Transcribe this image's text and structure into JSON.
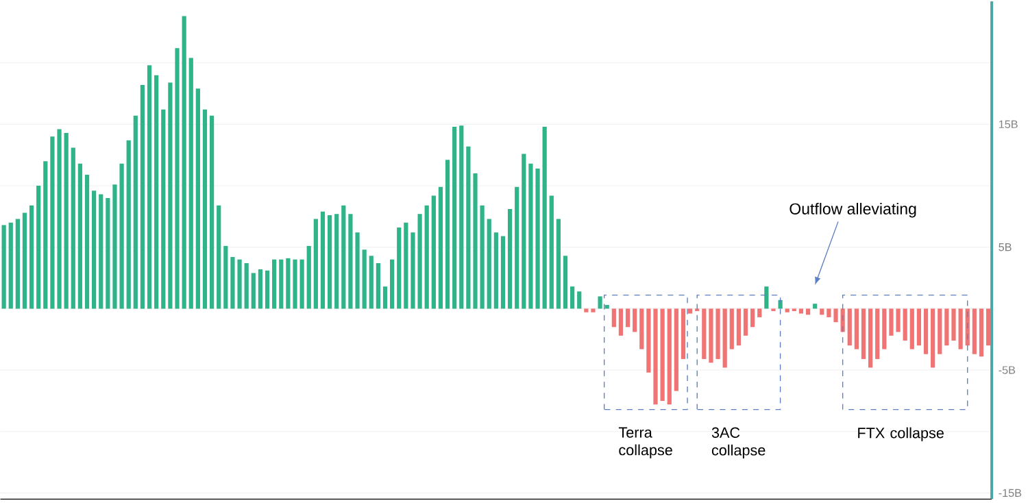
{
  "chart_data": {
    "type": "bar",
    "categories": [
      null,
      null,
      null,
      null,
      null,
      null,
      null,
      null,
      null,
      null,
      null,
      null,
      null,
      null,
      null,
      null,
      null,
      null,
      null,
      null,
      null,
      null,
      null,
      null,
      null,
      null,
      null,
      null,
      null,
      null,
      null,
      null,
      null,
      null,
      null,
      null,
      null,
      null,
      null,
      null,
      null,
      null,
      null,
      null,
      null,
      null,
      null,
      null,
      null,
      null,
      null,
      null,
      null,
      null,
      null,
      null,
      null,
      null,
      null,
      null,
      null,
      null,
      null,
      null,
      null,
      null,
      null,
      null,
      null,
      null,
      null,
      null,
      null,
      null,
      null,
      null,
      null,
      null,
      null,
      null,
      null,
      null,
      null,
      null,
      null,
      null,
      null,
      null,
      null,
      null,
      null,
      null,
      null,
      null,
      null,
      null,
      null,
      null,
      null,
      null,
      null,
      null,
      null,
      null,
      null,
      null,
      null,
      null,
      null,
      null,
      null,
      null,
      null,
      null,
      null,
      null,
      null,
      null,
      null,
      null,
      null,
      null,
      null,
      null,
      null,
      null,
      null,
      null,
      null,
      null,
      null,
      null,
      null,
      null,
      null,
      null,
      null,
      null,
      null,
      null,
      null,
      null,
      null
    ],
    "series": [
      {
        "color": "#2fb389",
        "values": [
          6.8,
          7.0,
          7.3,
          7.8,
          8.4,
          10.0,
          12.0,
          14.0,
          14.6,
          14.3,
          13.1,
          11.8,
          10.9,
          9.6,
          9.3,
          9.0,
          10.1,
          11.8,
          13.7,
          15.7,
          18.2,
          19.8,
          19.0,
          16.2,
          18.4,
          21.2,
          23.8,
          20.4,
          17.9,
          16.2,
          15.7,
          8.4,
          5.1,
          4.2,
          4.0,
          3.7,
          2.9,
          3.2,
          3.1,
          4.0,
          4.0,
          4.1,
          4.0,
          4.0,
          5.1,
          7.3,
          7.9,
          7.6,
          7.7,
          8.4,
          7.7,
          6.2,
          4.8,
          4.3,
          3.7,
          1.8,
          4.0,
          6.6,
          7.0,
          6.2,
          7.7,
          8.4,
          9.2,
          9.9,
          12.1,
          14.8,
          14.9,
          13.2,
          11.0,
          8.4,
          7.3,
          6.2,
          5.9,
          8.1,
          9.9,
          12.6,
          11.8,
          11.4,
          14.8,
          9.2,
          7.3,
          4.3,
          1.8,
          1.4,
          null,
          null,
          1.0,
          0.3,
          null,
          null,
          null,
          null,
          null,
          null,
          null,
          null,
          null,
          null,
          null,
          null,
          null,
          null,
          null,
          null,
          null,
          null,
          null,
          null,
          null,
          null,
          1.8,
          null,
          0.7,
          null,
          null,
          null,
          null,
          0.4,
          null,
          null,
          null,
          null,
          null,
          null,
          null,
          null,
          null,
          null,
          null,
          null,
          null,
          null,
          null,
          null,
          null,
          null,
          null,
          null,
          null,
          null,
          null,
          null,
          null
        ]
      },
      {
        "color": "#f07474",
        "values": [
          null,
          null,
          null,
          null,
          null,
          null,
          null,
          null,
          null,
          null,
          null,
          null,
          null,
          null,
          null,
          null,
          null,
          null,
          null,
          null,
          null,
          null,
          null,
          null,
          null,
          null,
          null,
          null,
          null,
          null,
          null,
          null,
          null,
          null,
          null,
          null,
          null,
          null,
          null,
          null,
          null,
          null,
          null,
          null,
          null,
          null,
          null,
          null,
          null,
          null,
          null,
          null,
          null,
          null,
          null,
          null,
          null,
          null,
          null,
          null,
          null,
          null,
          null,
          null,
          null,
          null,
          null,
          null,
          null,
          null,
          null,
          null,
          null,
          null,
          null,
          null,
          null,
          null,
          null,
          null,
          null,
          null,
          null,
          null,
          -0.3,
          -0.3,
          null,
          null,
          -1.5,
          -2.2,
          -1.5,
          -1.9,
          -3.3,
          -5.2,
          -7.8,
          -7.5,
          -7.8,
          -6.7,
          -4.1,
          -0.4,
          -0.2,
          -4.1,
          -4.4,
          -4.1,
          -4.8,
          -3.3,
          -3.0,
          -2.2,
          -1.5,
          -0.7,
          null,
          -0.2,
          null,
          -0.3,
          -0.2,
          -0.4,
          -0.5,
          null,
          -0.5,
          -0.7,
          -1.1,
          -1.9,
          -3.0,
          -3.3,
          -4.1,
          -4.8,
          -4.1,
          -3.3,
          -2.2,
          -1.9,
          -2.6,
          -3.3,
          -3.0,
          -3.7,
          -4.8,
          -3.7,
          -3.0,
          -2.6,
          -3.3,
          -3.0,
          -3.7,
          -3.9,
          -3.0
        ]
      }
    ],
    "ylim": [
      -15.5,
      25
    ],
    "yticks": [
      {
        "value": -15,
        "label": "-15B"
      },
      {
        "value": -10,
        "label": null
      },
      {
        "value": -5,
        "label": "-5B"
      },
      {
        "value": 0,
        "label": null
      },
      {
        "value": 5,
        "label": "5B"
      },
      {
        "value": 10,
        "label": null
      },
      {
        "value": 15,
        "label": "15B"
      },
      {
        "value": 20,
        "label": null
      }
    ],
    "grid": "y",
    "tick_labels": "y",
    "annotations": [
      "Terra collapse",
      "3AC collapse",
      "FTX collapse",
      "Outflow alleviating"
    ]
  }
}
